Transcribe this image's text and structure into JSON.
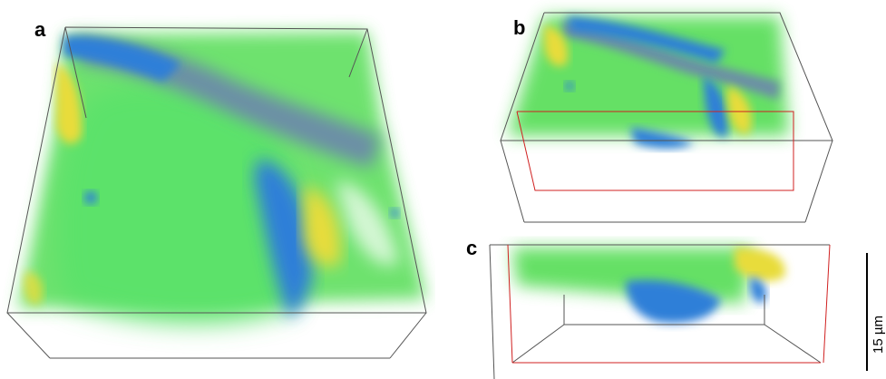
{
  "figure": {
    "panels": [
      {
        "label": "a"
      },
      {
        "label": "b"
      },
      {
        "label": "c"
      }
    ],
    "scale_bar": {
      "label": "15 µm"
    },
    "colors": {
      "green": "#55dd55",
      "blue": "#2f7fd8",
      "slate": "#6c8fa6",
      "yellow": "#e8dc3a",
      "edge_gray": "#555555",
      "edge_red": "#d02020"
    }
  }
}
